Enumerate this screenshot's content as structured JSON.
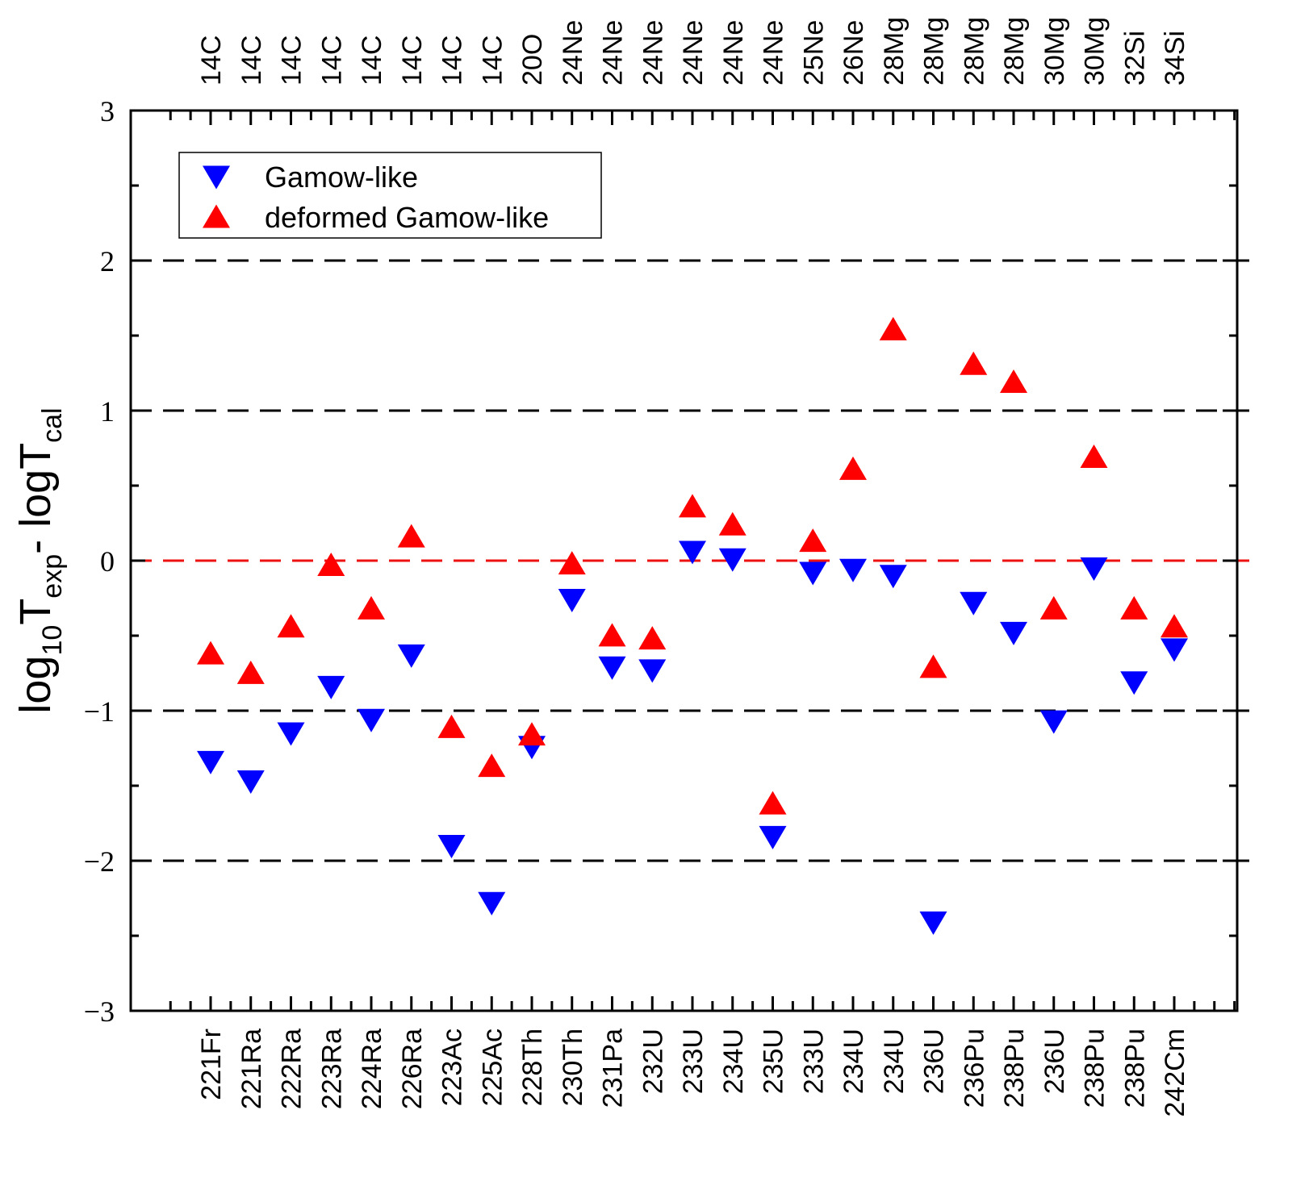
{
  "chart_data": {
    "type": "scatter",
    "ylabel": "log10Texp - logTcal",
    "ylabel_parts": {
      "a": "log",
      "a_sub": "10",
      "b": "T",
      "b_sub": "exp",
      "c": "- logT",
      "c_sub": "cal"
    },
    "ylim": [
      -3,
      3
    ],
    "yticks": [
      "−3",
      "−2",
      "−1",
      "0",
      "1",
      "2",
      "3"
    ],
    "grid": false,
    "legend_position": "top-left",
    "reference_lines": [
      {
        "y": 2,
        "color": "#000000",
        "style": "dashed"
      },
      {
        "y": 1,
        "color": "#000000",
        "style": "dashed"
      },
      {
        "y": 0,
        "color": "#ee1111",
        "style": "dashed"
      },
      {
        "y": -1,
        "color": "#000000",
        "style": "dashed"
      },
      {
        "y": -2,
        "color": "#000000",
        "style": "dashed"
      }
    ],
    "categories": [
      "221Fr",
      "221Ra",
      "222Ra",
      "223Ra",
      "224Ra",
      "226Ra",
      "223Ac",
      "225Ac",
      "228Th",
      "230Th",
      "231Pa",
      "232U",
      "233U",
      "234U",
      "235U",
      "233U",
      "234U",
      "234U",
      "236U",
      "236Pu",
      "238Pu",
      "236U",
      "238Pu",
      "238Pu",
      "242Cm"
    ],
    "emitted_clusters": [
      "14C",
      "14C",
      "14C",
      "14C",
      "14C",
      "14C",
      "14C",
      "14C",
      "20O",
      "24Ne",
      "24Ne",
      "24Ne",
      "24Ne",
      "24Ne",
      "24Ne",
      "25Ne",
      "26Ne",
      "28Mg",
      "28Mg",
      "28Mg",
      "28Mg",
      "30Mg",
      "30Mg",
      "32Si",
      "34Si"
    ],
    "series": [
      {
        "name": "Gamow-like",
        "marker": "triangle-down",
        "color": "#0000ff",
        "values": [
          -1.33,
          -1.46,
          -1.14,
          -0.83,
          -1.05,
          -0.62,
          -1.89,
          -2.27,
          -1.23,
          -0.25,
          -0.7,
          -0.72,
          0.07,
          0.02,
          -1.83,
          -0.07,
          -0.05,
          -0.09,
          -2.4,
          -0.27,
          -0.47,
          -1.06,
          -0.04,
          -0.8,
          -0.58
        ]
      },
      {
        "name": "deformed Gamow-like",
        "marker": "triangle-up",
        "color": "#ff0000",
        "values": [
          -0.63,
          -0.76,
          -0.45,
          -0.04,
          -0.33,
          0.15,
          -1.12,
          -1.38,
          -1.17,
          -0.03,
          -0.51,
          -0.53,
          0.35,
          0.23,
          -1.63,
          0.12,
          0.6,
          1.53,
          -0.72,
          1.3,
          1.18,
          -0.33,
          0.68,
          -0.33,
          -0.45
        ]
      }
    ]
  }
}
